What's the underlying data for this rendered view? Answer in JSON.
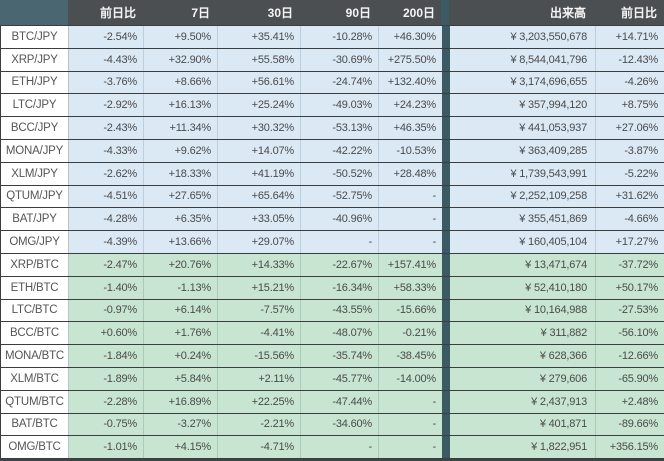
{
  "table": {
    "header": {
      "col_pair": "",
      "col_day_change": "前日比",
      "col_7d": "7日",
      "col_30d": "30日",
      "col_90d": "90日",
      "col_200d": "200日",
      "col_volume": "出来高",
      "col_volume_day_change": "前日比"
    },
    "rows": [
      {
        "pair": "BTC/JPY",
        "group": "jpy",
        "day": "-2.54%",
        "d7": "+9.50%",
        "d30": "+35.41%",
        "d90": "-10.28%",
        "d200": "+46.30%",
        "volume": "¥ 3,203,550,678",
        "vol_day": "+14.71%"
      },
      {
        "pair": "XRP/JPY",
        "group": "jpy",
        "day": "-4.43%",
        "d7": "+32.90%",
        "d30": "+55.58%",
        "d90": "-30.69%",
        "d200": "+275.50%",
        "volume": "¥ 8,544,041,796",
        "vol_day": "-12.43%"
      },
      {
        "pair": "ETH/JPY",
        "group": "jpy",
        "day": "-3.76%",
        "d7": "+8.66%",
        "d30": "+56.61%",
        "d90": "-24.74%",
        "d200": "+132.40%",
        "volume": "¥ 3,174,696,655",
        "vol_day": "-4.26%"
      },
      {
        "pair": "LTC/JPY",
        "group": "jpy",
        "day": "-2.92%",
        "d7": "+16.13%",
        "d30": "+25.24%",
        "d90": "-49.03%",
        "d200": "+24.23%",
        "volume": "¥ 357,994,120",
        "vol_day": "+8.75%"
      },
      {
        "pair": "BCC/JPY",
        "group": "jpy",
        "day": "-2.43%",
        "d7": "+11.34%",
        "d30": "+30.32%",
        "d90": "-53.13%",
        "d200": "+46.35%",
        "volume": "¥ 441,053,937",
        "vol_day": "+27.06%"
      },
      {
        "pair": "MONA/JPY",
        "group": "jpy",
        "day": "-4.33%",
        "d7": "+9.62%",
        "d30": "+14.07%",
        "d90": "-42.22%",
        "d200": "-10.53%",
        "volume": "¥ 363,409,285",
        "vol_day": "-3.87%"
      },
      {
        "pair": "XLM/JPY",
        "group": "jpy",
        "day": "-2.62%",
        "d7": "+18.33%",
        "d30": "+41.19%",
        "d90": "-50.52%",
        "d200": "+28.48%",
        "volume": "¥ 1,739,543,991",
        "vol_day": "-5.22%"
      },
      {
        "pair": "QTUM/JPY",
        "group": "jpy",
        "day": "-4.51%",
        "d7": "+27.65%",
        "d30": "+65.64%",
        "d90": "-52.75%",
        "d200": "-",
        "volume": "¥ 2,252,109,258",
        "vol_day": "+31.62%"
      },
      {
        "pair": "BAT/JPY",
        "group": "jpy",
        "day": "-4.28%",
        "d7": "+6.35%",
        "d30": "+33.05%",
        "d90": "-40.96%",
        "d200": "-",
        "volume": "¥ 355,451,869",
        "vol_day": "-4.66%"
      },
      {
        "pair": "OMG/JPY",
        "group": "jpy",
        "day": "-4.39%",
        "d7": "+13.66%",
        "d30": "+29.07%",
        "d90": "-",
        "d200": "-",
        "volume": "¥ 160,405,104",
        "vol_day": "+17.27%"
      },
      {
        "pair": "XRP/BTC",
        "group": "btc",
        "day": "-2.47%",
        "d7": "+20.76%",
        "d30": "+14.33%",
        "d90": "-22.67%",
        "d200": "+157.41%",
        "volume": "¥ 13,471,674",
        "vol_day": "-37.72%"
      },
      {
        "pair": "ETH/BTC",
        "group": "btc",
        "day": "-1.40%",
        "d7": "-1.13%",
        "d30": "+15.21%",
        "d90": "-16.34%",
        "d200": "+58.33%",
        "volume": "¥ 52,410,180",
        "vol_day": "+50.17%"
      },
      {
        "pair": "LTC/BTC",
        "group": "btc",
        "day": "-0.97%",
        "d7": "+6.14%",
        "d30": "-7.57%",
        "d90": "-43.55%",
        "d200": "-15.66%",
        "volume": "¥ 10,164,988",
        "vol_day": "-27.53%"
      },
      {
        "pair": "BCC/BTC",
        "group": "btc",
        "day": "+0.60%",
        "d7": "+1.76%",
        "d30": "-4.41%",
        "d90": "-48.07%",
        "d200": "-0.21%",
        "volume": "¥ 311,882",
        "vol_day": "-56.10%"
      },
      {
        "pair": "MONA/BTC",
        "group": "btc",
        "day": "-1.84%",
        "d7": "+0.24%",
        "d30": "-15.56%",
        "d90": "-35.74%",
        "d200": "-38.45%",
        "volume": "¥ 628,366",
        "vol_day": "-12.66%"
      },
      {
        "pair": "XLM/BTC",
        "group": "btc",
        "day": "-1.89%",
        "d7": "+5.84%",
        "d30": "+2.11%",
        "d90": "-45.77%",
        "d200": "-14.00%",
        "volume": "¥ 279,606",
        "vol_day": "-65.90%"
      },
      {
        "pair": "QTUM/BTC",
        "group": "btc",
        "day": "-2.28%",
        "d7": "+16.89%",
        "d30": "+22.25%",
        "d90": "-47.44%",
        "d200": "-",
        "volume": "¥ 2,437,913",
        "vol_day": "+2.48%"
      },
      {
        "pair": "BAT/BTC",
        "group": "btc",
        "day": "-0.75%",
        "d7": "-3.27%",
        "d30": "-2.21%",
        "d90": "-34.60%",
        "d200": "-",
        "volume": "¥ 401,871",
        "vol_day": "-89.66%"
      },
      {
        "pair": "OMG/BTC",
        "group": "btc",
        "day": "-1.01%",
        "d7": "+4.15%",
        "d30": "-4.71%",
        "d90": "-",
        "d200": "-",
        "volume": "¥ 1,822,951",
        "vol_day": "+356.15%"
      }
    ]
  },
  "colors": {
    "header-bg": "#4b4f52",
    "corner-bg": "#4a6670",
    "divider": "#3b5a64",
    "jpy-bg": "#dbe9f5",
    "btc-bg": "#c8e5d1",
    "row-border": "#3b3e40",
    "text": "#4a4a4a",
    "pair-text": "#555555",
    "header-text": "#f5f5f5",
    "footer-bg": "#3e4347"
  }
}
